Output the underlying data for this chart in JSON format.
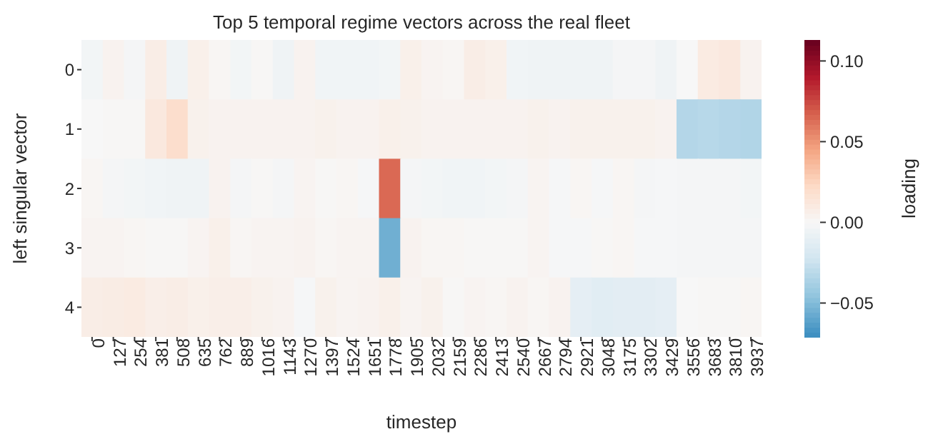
{
  "chart_data": {
    "type": "heatmap",
    "title": "Top 5 temporal regime vectors across the real fleet",
    "xlabel": "timestep",
    "ylabel": "left singular vector",
    "clabel": "loading",
    "categories": [
      "0",
      "127",
      "254",
      "381",
      "508",
      "635",
      "762",
      "889",
      "1016",
      "1143",
      "1270",
      "1397",
      "1524",
      "1651",
      "1778",
      "1905",
      "2032",
      "2159",
      "2286",
      "2413",
      "2540",
      "2667",
      "2794",
      "2921",
      "3048",
      "3175",
      "3302",
      "3429",
      "3556",
      "3683",
      "3810",
      "3937"
    ],
    "y_categories": [
      "0",
      "1",
      "2",
      "3",
      "4"
    ],
    "cells": [
      [
        -0.003,
        0.004,
        -0.002,
        0.008,
        -0.005,
        0.006,
        0.002,
        -0.003,
        0.001,
        -0.005,
        0.004,
        -0.004,
        -0.004,
        -0.004,
        -0.003,
        0.006,
        0.003,
        0.002,
        0.008,
        0.006,
        -0.004,
        -0.005,
        -0.005,
        -0.005,
        -0.005,
        -0.002,
        -0.002,
        -0.005,
        0.0,
        0.01,
        0.012,
        0.004
      ],
      [
        0.0,
        0.001,
        0.001,
        0.012,
        0.02,
        0.005,
        0.004,
        0.004,
        0.004,
        0.004,
        0.004,
        0.005,
        0.004,
        0.004,
        0.006,
        0.005,
        0.004,
        0.004,
        0.004,
        0.004,
        0.004,
        0.005,
        0.004,
        0.005,
        0.005,
        0.005,
        0.005,
        0.004,
        -0.033,
        -0.032,
        -0.033,
        -0.034
      ],
      [
        0.002,
        -0.002,
        -0.003,
        -0.004,
        -0.005,
        -0.005,
        0.004,
        -0.002,
        0.001,
        -0.002,
        0.003,
        0.001,
        0.002,
        -0.001,
        0.065,
        -0.002,
        -0.003,
        -0.004,
        -0.004,
        -0.003,
        -0.002,
        0.003,
        -0.001,
        0.002,
        -0.001,
        0.002,
        -0.002,
        -0.001,
        -0.002,
        -0.002,
        -0.002,
        -0.003
      ],
      [
        0.003,
        0.003,
        0.002,
        0.001,
        0.001,
        0.003,
        0.006,
        0.002,
        0.003,
        0.003,
        0.004,
        0.002,
        0.003,
        0.003,
        -0.055,
        0.004,
        0.002,
        0.002,
        0.001,
        0.001,
        0.001,
        0.003,
        -0.001,
        -0.001,
        0.001,
        0.002,
        -0.001,
        -0.001,
        -0.002,
        -0.002,
        -0.002,
        -0.002
      ],
      [
        0.008,
        0.009,
        0.01,
        0.007,
        0.008,
        0.006,
        0.007,
        0.007,
        0.005,
        0.004,
        -0.001,
        0.005,
        0.003,
        0.004,
        0.006,
        0.003,
        0.005,
        0.001,
        0.003,
        0.002,
        0.004,
        0.002,
        0.004,
        -0.011,
        -0.013,
        -0.012,
        -0.012,
        -0.011,
        0.0,
        0.001,
        0.001,
        0.002
      ]
    ],
    "clim": [
      -0.071,
      0.113
    ],
    "cticks": [
      {
        "value": -0.05,
        "label": "−0.05"
      },
      {
        "value": 0,
        "label": "0.00"
      },
      {
        "value": 0.05,
        "label": "0.05"
      },
      {
        "value": 0.1,
        "label": "0.10"
      }
    ]
  }
}
